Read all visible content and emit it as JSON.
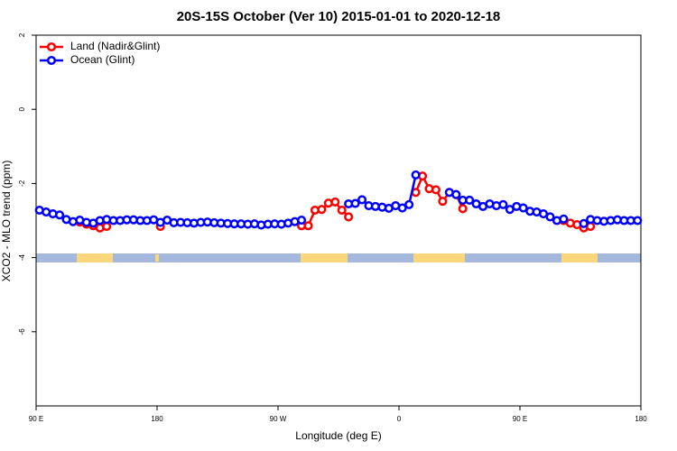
{
  "chart_data": {
    "type": "line",
    "title": "20S-15S October (Ver 10)   2015-01-01 to 2020-12-18",
    "x_label": "Longitude (deg E)",
    "y_label": "XCO2 - MLO trend (ppm)",
    "legend": "top-left",
    "xlim": [
      90,
      540
    ],
    "xticks": [
      {
        "value": 90,
        "label": "90 E"
      },
      180,
      {
        "value": 270,
        "label": "90 W"
      },
      {
        "value": 360,
        "label": "0"
      },
      {
        "value": 450,
        "label": "90 E"
      },
      {
        "value": 540,
        "label": "180"
      }
    ],
    "ylim": [
      -8,
      2
    ],
    "yticks": [
      2,
      0,
      -2,
      -4,
      -6
    ],
    "x": [
      92.5,
      97.5,
      102.5,
      107.5,
      112.5,
      117.5,
      122.5,
      127.5,
      132.5,
      137.5,
      142.5,
      147.5,
      152.5,
      157.5,
      162.5,
      167.5,
      172.5,
      177.5,
      182.5,
      187.5,
      192.5,
      197.5,
      202.5,
      207.5,
      212.5,
      217.5,
      222.5,
      227.5,
      232.5,
      237.5,
      242.5,
      247.5,
      252.5,
      257.5,
      262.5,
      267.5,
      272.5,
      277.5,
      282.5,
      287.5,
      292.5,
      297.5,
      302.5,
      307.5,
      312.5,
      317.5,
      322.5,
      327.5,
      332.5,
      337.5,
      342.5,
      347.5,
      352.5,
      357.5,
      362.5,
      367.5,
      372.5,
      377.5,
      382.5,
      387.5,
      392.5,
      397.5,
      402.5,
      407.5,
      412.5,
      417.5,
      422.5,
      427.5,
      432.5,
      437.5,
      442.5,
      447.5,
      452.5,
      457.5,
      462.5,
      467.5,
      472.5,
      477.5,
      482.5,
      487.5,
      492.5,
      497.5,
      502.5,
      507.5,
      512.5,
      517.5,
      522.5,
      527.5,
      532.5,
      537.5
    ],
    "series": [
      {
        "name": "Land (Nadir&Glint)",
        "color": "#ff0000",
        "values": [
          null,
          null,
          null,
          null,
          null,
          null,
          -3.04,
          -3.1,
          -3.14,
          -3.2,
          -3.16,
          null,
          null,
          null,
          null,
          null,
          null,
          null,
          -3.16,
          null,
          null,
          null,
          null,
          null,
          null,
          null,
          null,
          null,
          null,
          null,
          null,
          null,
          null,
          null,
          null,
          null,
          null,
          null,
          null,
          -3.14,
          -3.14,
          -2.72,
          -2.7,
          -2.53,
          -2.5,
          -2.72,
          -2.9,
          null,
          null,
          null,
          null,
          null,
          null,
          null,
          null,
          null,
          -2.24,
          -1.8,
          -2.14,
          -2.17,
          -2.48,
          -2.24,
          -2.3,
          -2.68,
          null,
          null,
          null,
          null,
          null,
          null,
          null,
          null,
          null,
          null,
          null,
          null,
          null,
          null,
          -3.0,
          -3.07,
          -3.11,
          -3.2,
          -3.16,
          null,
          null,
          null,
          null,
          null,
          null,
          null
        ]
      },
      {
        "name": "Ocean (Glint)",
        "color": "#0000ff",
        "values": [
          -2.72,
          -2.77,
          -2.82,
          -2.85,
          -2.97,
          -3.03,
          -2.99,
          -3.05,
          -3.07,
          -3.0,
          -2.97,
          -3.0,
          -3.0,
          -2.98,
          -2.98,
          -3.0,
          -3.0,
          -2.98,
          -3.05,
          -2.99,
          -3.06,
          -3.05,
          -3.06,
          -3.07,
          -3.05,
          -3.04,
          -3.06,
          -3.07,
          -3.08,
          -3.09,
          -3.09,
          -3.1,
          -3.09,
          -3.12,
          -3.1,
          -3.09,
          -3.1,
          -3.07,
          -3.03,
          -2.99,
          null,
          null,
          null,
          null,
          null,
          null,
          -2.55,
          -2.54,
          -2.44,
          -2.6,
          -2.62,
          -2.64,
          -2.67,
          -2.6,
          -2.66,
          -2.57,
          -1.77,
          null,
          null,
          null,
          null,
          -2.24,
          -2.3,
          -2.45,
          -2.45,
          -2.55,
          -2.62,
          -2.55,
          -2.6,
          -2.57,
          -2.7,
          -2.62,
          -2.66,
          -2.75,
          -2.77,
          -2.82,
          -2.9,
          -3.0,
          -2.96,
          null,
          null,
          -3.08,
          -2.97,
          -3.0,
          -3.02,
          -3.0,
          -2.98,
          -3.0,
          -3.0,
          -3.0
        ]
      }
    ]
  }
}
